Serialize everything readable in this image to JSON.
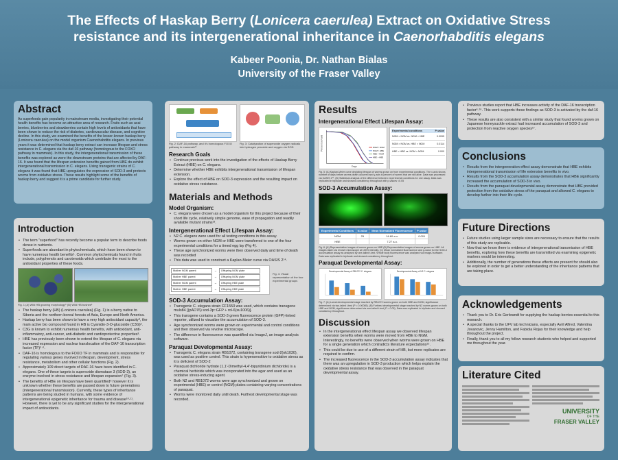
{
  "header": {
    "title_line1_a": "The Effects of Haskap Berry (",
    "title_line1_sci": "Lonicera caerulea)",
    "title_line1_b": " Extract on Oxidative Stress",
    "title_line2_a": "resistance and its intergenerational inheritance  in ",
    "title_line2_sci": "Caenorhabditis elegans",
    "authors": "Kabeer Poonia, Dr. Nathan Bialas",
    "university": "University of the Fraser Valley"
  },
  "abstract": {
    "heading": "Abstract",
    "text": "As superfoods gain popularity in mainstream media, investigating their potential health benefits has become an attractive area of research. Fruits such as acai berries, blueberries and strawberries contain high levels of antioxidants that have been shown to reduce the risk of diabetes, cardiovascular disease, and cognitive decline. In this study, we examined the benefits of the lesser-known haskap berry (Lonicera caerulea) on the model organism Caenorhabditis elegans. In previous years it was determined that haskap berry extract can increase lifespan and stress resistance in C. elegans via the daf-16 pathway (homologous to the FOXO pathway in mammals). In this study, the intergenerational transmission of these benefits was explored as were the downstream proteins that are affected by DAF-16. It was found that the lifespan extension benefits gained from HBE do exhibit intergenerational transmission in C. elegans. Using transgenic strains of C. elegans it was found that HBE upregulates the expression of SOD-3 and protects worms from oxidative stress. These results highlight some of the benefits of haskap berry and suggest it is a prime candidate for further study."
  },
  "introduction": {
    "heading": "Introduction",
    "bullets_top": [
      "The term \"superfood\" has recently become a popular term to describe foods dense in nutrients.",
      "Superfoods are abundant in phytochemicals, which have been shown to have numerous health benefits¹. Common phytochemicals found in fruits include, polyphenols and carotenoids which contribute the most to the antioxidant properties of these foods."
    ],
    "fig_caption": "Fig. 1 (A) Wild HB growing morphology⁵ (B) Wild HB bushes⁶",
    "bullets_bottom": [
      "The haskap berry (HB) (Lonicera caerulea) (Fig. 1) is a berry native to Siberia and the northern boreal forests of Asia, Europe and North America.",
      "Haskap berry has been shown to have a very high antioxidant capacity⁸, the main active bio compound found in HB is Cyanidin-3-O-glucoside (C3G)².",
      "C3G is known to exhibit numerous health benefits, with antioxidant, anti-inflammatory, anti-cancer, anti-diabetic and cardioprotective properties³.",
      "HBE has previously been shown to extend the lifespan of C. elegans via increased expression and nuclear translocation of the DAF-16 transcription factor (TF)⁵·⁶.",
      "DAF-16 is homologous to the FOXO TF in mammals and is responsible for regulating various genes involved in lifespan, development, stress resistance, metabolism and other cellular functions (Fig. 2).",
      "Approximately 109 direct targets of DAF-16 have been identified in C. elegans. One of these targets is superoxide dismutase 3 (SOD-3), an enzyme involved in stress resistance and lifespan expansion⁷ (Fig. 3).",
      "The benefits of HBE on lifespan have been quantified⁶ however it is unknown whether these benefits are passed down to future generations (intergenerational transmission). Currently, these types of inheritance patterns are being studied in humans, with some evidence of intergenerational epigenetic inheritance for trauma and disease¹⁰·¹¹. However, there is yet to be any significant studies for the intergenerational impact of antioxidants."
    ]
  },
  "col2": {
    "fig2_caption": "Fig. 2: DAF-16 pathway, and it's homologous FOXO pathway in mammals¹²",
    "fig3_caption": "Fig. 3: Catalyzation of superoxide oxygen radicals into hydrogen peroxide and oxygen via SOD",
    "goals_heading": "Research Goals",
    "goals": [
      "Continue previous work into the investigation of the effects of Haskap Berry Extract (HBE) on C. elegans.",
      "Determine whether HBE exhibits intergenerational transmission of lifespan extension.",
      "Explore the effect of HBE on SOD-3 expression and the resulting impact on oxidative stress resistance."
    ],
    "mm_heading": "Materials and Methods",
    "model_heading": "Model Organism:",
    "model": [
      "C. elegans were chosen as a model organism for this project because of their short life cycle, relatively simple genome, ease of propagation and readily available mutant strains¹³."
    ],
    "ielife_heading": "Intergenerational Effect Lifespan Assay:",
    "ielife": [
      "N2 C. elegans were used for all testing conditions in this assay.",
      "Worms grown on either NGM or HBE were transferred to one of the four experimental conditions for a timed egg lay (Fig 4).",
      "These age synchronized worms were then observed daily and time of death was recorded",
      "This data was used to construct a Kaplan-Meier curve via OASIS 2¹⁴."
    ],
    "fig4_caption": "Fig. 4: Visual representation of the four experimental groups",
    "fig4_rows": [
      "Mother NGM parent",
      "Mother HBE parent",
      "Mother NGM parent",
      "Mother HBE parent"
    ],
    "fig4_arrows": [
      "Offspring NGM plate",
      "Offspring NGM plate",
      "Offspring HBE plate",
      "Offspring HBE plate"
    ],
    "sod_heading": "SOD-3 Accumulation Assay:",
    "sod": [
      "Transgenic C. elegans strain CF1553 was used, which contains transgene muIs84 [(pAD76) sod-3p::GFP + rol-6(su1006)].",
      "This transgene contains a SOD-3 green fluorescence protein (GFP)-linked reporter, utilized to visualize the accumulation of SOD-3.",
      "Age synchronized worms were grown on experimental and control conditions and then observed via revolve microscope.",
      "The difference in fluorescence was quantified via ImageJ, an image analysis software."
    ],
    "para_heading": "Paraquat Developmental Assay:",
    "para": [
      "Transgenic C. elegans strain RB1072, containing transgene sod-2(ok1030), was used as positive control. This strain is hypersensitive to oxidative stress as it is deficient of SOD-2",
      "Paraquat dichloride hydrate (1,1'-Dimethyl-4,4'-bipyridinium dichloride) is a chemical herbicide which was incorporated into the agar and used as an oxidative stress-inducing agent.",
      "Both N2 and RB1072 worms were age synchronized and grown on experimental (HBE) or control (NGM) plates containing varying concentrations of paraquat.",
      "Worms were monitored daily until death. Furthest developmental stage was recorded."
    ]
  },
  "results": {
    "heading": "Results",
    "lifespan_heading": "Intergenerational Effect Lifespan Assay:",
    "lifespan_ylabel": "Percent survival",
    "lifespan_xlabel": "Days",
    "lifespan_legend": [
      "NGM > NGM",
      "NGM > HBE",
      "HBE > NGM",
      "HBE > HBE"
    ],
    "lifespan_table_header": [
      "Experimental conditions",
      "P-value"
    ],
    "lifespan_table_rows": [
      [
        "NGM > NGM vs. NGM > HBE",
        "0.0095"
      ],
      [
        "NGM > NGM vs. HBE > NGM",
        "0.0114"
      ],
      [
        "HBE > HBE vs. NGM > NGM",
        "0.000"
      ]
    ],
    "lifespan_caption": "Fig. 5: (A) Kaplan-Meier curve depicting lifespan of worms grown on from experimental conditions. The x-axis shows number of days before worms death occurred and y-axis is percent of worms that are still alive. Data was processed via OASIS 2¹⁴. (B) Statistical analysis of the difference between experimental conditions for one assay. Data was replicated in triplicate and showed consistency throughout with p-values <0.05",
    "sod_heading": "SOD-3 Accumulation Assay:",
    "sod_table_header": [
      "Experimental Conditions",
      "N-value",
      "Mean Normalized Fluorescence",
      "P-value"
    ],
    "sod_table_rows": [
      [
        "NGM",
        "25",
        "14.60 a.u.",
        "0.001"
      ],
      [
        "HBE",
        "",
        "7.27 a.u.",
        ""
      ]
    ],
    "sod_caption": "Fig. 6: (A) Representative images of worms grown on HBE (B) Representative images of worms grown on HBE. All images taken via revolve microscope at 100% intensity. (C) Mean normalized fluorescence and p-value for the SOD-3 accumulation assay as analysed by one-tailed t-test. Whole body fluorescence was analysed via ImageJ software. Data was replicated in triplicate and showed consistency throughout.",
    "para_heading": "Paraquat Developmental Assay:",
    "para_chartA_title": "Developmental Assay of RB1072 C. elegans",
    "para_chartB_title": "Developmental Assay of N2 C. elegans",
    "para_caption": "Fig. 7: (A) Larval developmental stage reached by RB1072 worms grown on both HBE and NGM, significance determined via two-tailed t-test (P = 0.00085). (B) Furthest developmental stage reached by N2 worms grown on both HBE and NGM, significance determined via one-tailed t-test (P = 0.05). Data was replicated in triplicate and showed consistency throughout.",
    "disc_heading": "Discussion",
    "disc": [
      "In the intergenerational effect lifespan assay we observed lifespan extension benefits when worms were moved from HBE to NGM. Interestingly, no benefits were observed when worms were grown on HBE for a single generation which contradicts literature expectations¹⁵.",
      "This could be due to use of a different strain of HB, but more replicates are required to confirm.",
      "The increased fluorescence in the SOD-3 accumulation assay indicates that there was an upregulation in SOD-3 production which helps explain the oxidative stress resistance that was observed in the paraquat developmental assay."
    ]
  },
  "col4": {
    "top_bullets": [
      "Previous studies report that HBE increases activity of the DAF-16 transcription factor⁶·¹⁶. This work supports these findings as SOD-3 is activated by the daf-16 pathway.",
      "These results are also consistent with a similar study that found worms grown on Japanese honeysuckle extract had increased accumulation of SOD-3 and protection from reactive oxygen species¹⁷."
    ],
    "concl_heading": "Conclusions",
    "concl": [
      "Results from the intergeneration effect assay demonstrate that HBE exhibits intergenerational transmission of life extension benefits in vivo.",
      "Results from the SOD-3 accumulation assay demonstrates that HBE significantly increased the accumulation of SOD-3 in vivo.",
      "Results from the paraquat developmental assay demonstrate that HBE provided protection from the oxidative stress of the paraquat and allowed C. elegans to develop further into their life cycle."
    ],
    "future_heading": "Future Directions",
    "future": [
      "Future studies using larger sample sizes are necessary to ensure that the results of this study are replicable.",
      "Now that we know there is evidence of intergenerational transmission of HBE benefits, exploring how these benefits are transmitted via examining epigenetic markers would be interesting.",
      "Additionally, the number of generations these effects are present for should also be explored in order to get a better understanding of the inheritance patterns that are taking place."
    ],
    "ack_heading": "Acknowledgements",
    "ack": [
      "Thank you to Dr. Eric Gerbrandt for supplying the haskap berries essential to this research.",
      "A special thanks to the UFV lab technicians, especially Avril Alfred, Valentina Jovanovic, Jenny Hamilton, and Fabiola Rojas for their knowledge and help throughout the project.",
      "Finally, thank you to all my fellow research students who helped and supported me throughout the year."
    ],
    "lit_heading": "Literature Cited",
    "logo_line1": "UNIVERSITY",
    "logo_line2": "OF THE",
    "logo_line3": "FRASER VALLEY"
  }
}
